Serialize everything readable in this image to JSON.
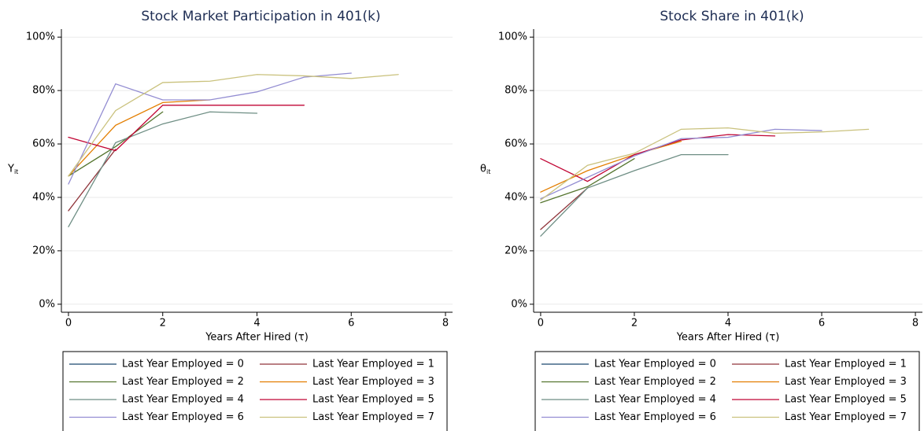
{
  "chart_data": [
    {
      "type": "line",
      "title": "Stock Market Participation in 401(k)",
      "ylabel": "Y",
      "ylabel_sub": "it",
      "xlabel": "Years After Hired (τ)",
      "x": [
        0,
        1,
        2,
        3,
        4,
        5,
        6,
        7
      ],
      "xlim": [
        -0.15,
        8.15
      ],
      "xticks": [
        0,
        2,
        4,
        6,
        8
      ],
      "ylim": [
        -3,
        103
      ],
      "yticks": [
        {
          "value": 0,
          "label": "0%"
        },
        {
          "value": 20,
          "label": "20%"
        },
        {
          "value": 40,
          "label": "40%"
        },
        {
          "value": 60,
          "label": "60%"
        },
        {
          "value": 80,
          "label": "80%"
        },
        {
          "value": 100,
          "label": "100%"
        }
      ],
      "grid": true,
      "series": [
        {
          "name": "Last Year Employed = 0",
          "color": "#1a476f",
          "values": [
            48,
            null,
            null,
            null,
            null,
            null,
            null,
            null
          ]
        },
        {
          "name": "Last Year Employed = 1",
          "color": "#90353b",
          "values": [
            35,
            58,
            null,
            null,
            null,
            null,
            null,
            null
          ]
        },
        {
          "name": "Last Year Employed = 2",
          "color": "#55752f",
          "values": [
            48,
            59,
            72,
            null,
            null,
            null,
            null,
            null
          ]
        },
        {
          "name": "Last Year Employed = 3",
          "color": "#e37e00",
          "values": [
            48,
            67,
            75.5,
            76.5,
            null,
            null,
            null,
            null
          ]
        },
        {
          "name": "Last Year Employed = 4",
          "color": "#6e8e84",
          "values": [
            29,
            60.5,
            67.5,
            72,
            71.5,
            null,
            null,
            null
          ]
        },
        {
          "name": "Last Year Employed = 5",
          "color": "#c10534",
          "values": [
            62.5,
            57.5,
            74.5,
            74.5,
            74.5,
            74.5,
            null,
            null
          ]
        },
        {
          "name": "Last Year Employed = 6",
          "color": "#938dd2",
          "values": [
            45,
            82.5,
            76.5,
            76.5,
            79.5,
            85,
            86.5,
            null
          ]
        },
        {
          "name": "Last Year Employed = 7",
          "color": "#cac27e",
          "values": [
            48,
            72.5,
            83,
            83.5,
            86,
            85.5,
            84.5,
            86
          ]
        }
      ]
    },
    {
      "type": "line",
      "title": "Stock Share in 401(k)",
      "ylabel": "θ",
      "ylabel_sub": "it",
      "xlabel": "Years After Hired (τ)",
      "x": [
        0,
        1,
        2,
        3,
        4,
        5,
        6,
        7
      ],
      "xlim": [
        -0.15,
        8.15
      ],
      "xticks": [
        0,
        2,
        4,
        6,
        8
      ],
      "ylim": [
        -3,
        103
      ],
      "yticks": [
        {
          "value": 0,
          "label": "0%"
        },
        {
          "value": 20,
          "label": "20%"
        },
        {
          "value": 40,
          "label": "40%"
        },
        {
          "value": 60,
          "label": "60%"
        },
        {
          "value": 80,
          "label": "80%"
        },
        {
          "value": 100,
          "label": "100%"
        }
      ],
      "grid": true,
      "series": [
        {
          "name": "Last Year Employed = 0",
          "color": "#1a476f",
          "values": [
            40,
            null,
            null,
            null,
            null,
            null,
            null,
            null
          ]
        },
        {
          "name": "Last Year Employed = 1",
          "color": "#90353b",
          "values": [
            28,
            43.5,
            null,
            null,
            null,
            null,
            null,
            null
          ]
        },
        {
          "name": "Last Year Employed = 2",
          "color": "#55752f",
          "values": [
            38,
            44,
            54.5,
            null,
            null,
            null,
            null,
            null
          ]
        },
        {
          "name": "Last Year Employed = 3",
          "color": "#e37e00",
          "values": [
            42,
            50,
            56,
            61,
            null,
            null,
            null,
            null
          ]
        },
        {
          "name": "Last Year Employed = 4",
          "color": "#6e8e84",
          "values": [
            25.5,
            43.5,
            50,
            56,
            56,
            null,
            null,
            null
          ]
        },
        {
          "name": "Last Year Employed = 5",
          "color": "#c10534",
          "values": [
            54.5,
            46,
            56,
            61.5,
            63.5,
            63,
            null,
            null
          ]
        },
        {
          "name": "Last Year Employed = 6",
          "color": "#938dd2",
          "values": [
            39.5,
            47.5,
            55.5,
            62,
            62.5,
            65.5,
            65,
            null
          ]
        },
        {
          "name": "Last Year Employed = 7",
          "color": "#cac27e",
          "values": [
            39,
            52,
            56.5,
            65.5,
            66,
            64,
            64.5,
            65.5
          ]
        }
      ]
    }
  ]
}
